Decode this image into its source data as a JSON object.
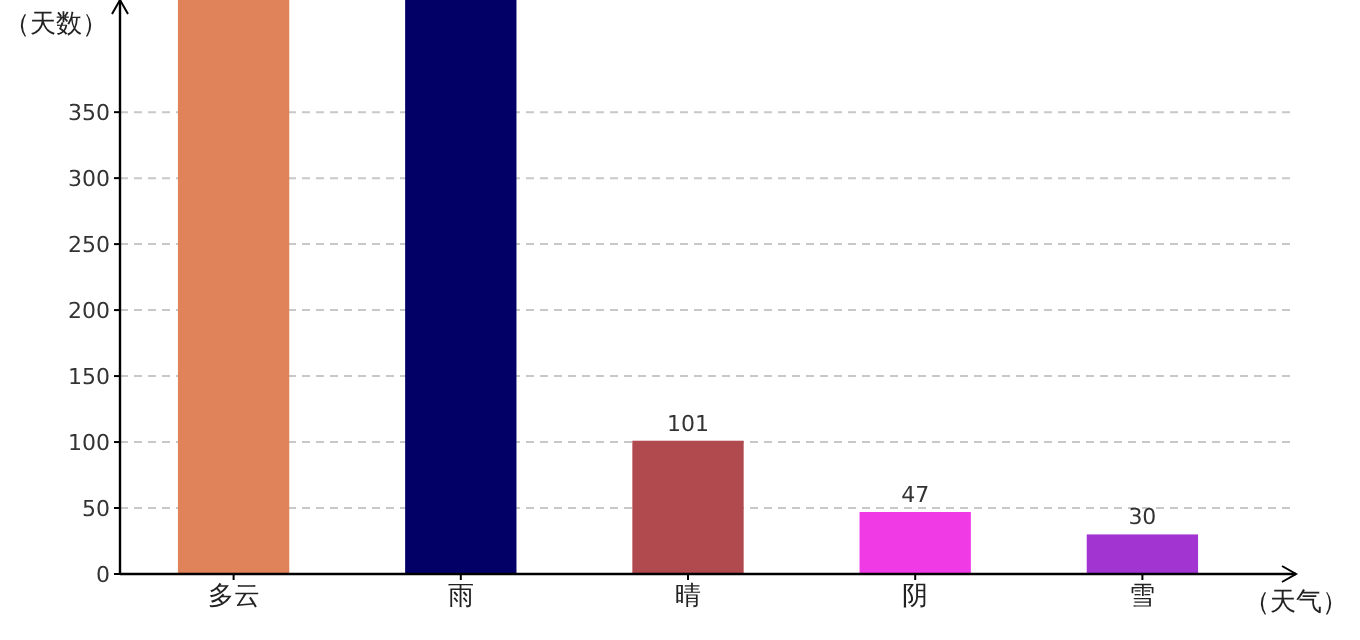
{
  "chart_data": {
    "type": "bar",
    "xlabel": "（天气）",
    "ylabel": "（天数）",
    "categories": [
      "多云",
      "雨",
      "晴",
      "阴",
      "雪"
    ],
    "values": [
      435,
      435,
      101,
      47,
      30
    ],
    "value_labels": [
      null,
      null,
      "101",
      "47",
      "30"
    ],
    "colors": [
      "#e0835a",
      "#020066",
      "#b04a4e",
      "#f03ae6",
      "#a235d1"
    ],
    "ylim": [
      0,
      435
    ],
    "yticks": [
      0,
      50,
      100,
      150,
      200,
      250,
      300,
      350
    ],
    "grid": "y"
  }
}
